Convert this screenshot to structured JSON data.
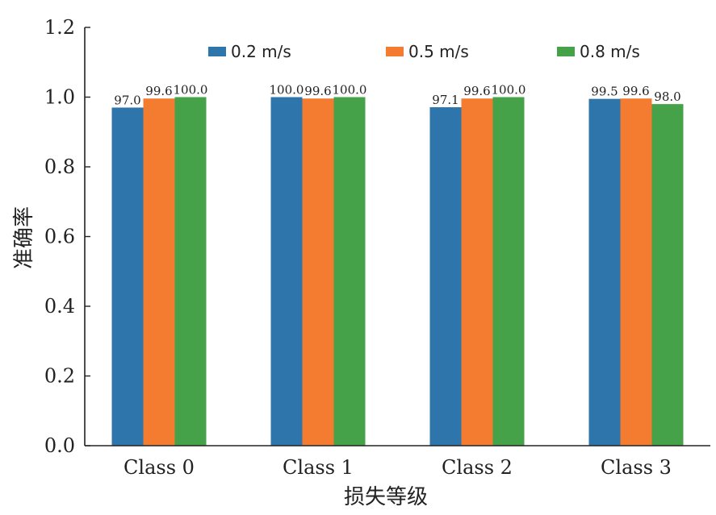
{
  "chart_data": {
    "type": "bar",
    "title": "",
    "xlabel": "损失等级",
    "ylabel": "准确率",
    "categories": [
      "Class 0",
      "Class 1",
      "Class 2",
      "Class 3"
    ],
    "ylim": [
      0.0,
      1.2
    ],
    "yticks": [
      "0.0",
      "0.2",
      "0.4",
      "0.6",
      "0.8",
      "1.0",
      "1.2"
    ],
    "grid": false,
    "legend_position": "top",
    "series": [
      {
        "name": "0.2 m/s",
        "color": "#2e75ab",
        "values": [
          0.97,
          1.0,
          0.971,
          0.995
        ],
        "labels": [
          "97.0",
          "100.0",
          "97.1",
          "99.5"
        ]
      },
      {
        "name": "0.5 m/s",
        "color": "#f47c30",
        "values": [
          0.996,
          0.996,
          0.996,
          0.996
        ],
        "labels": [
          "99.6",
          "99.6",
          "99.6",
          "99.6"
        ]
      },
      {
        "name": "0.8 m/s",
        "color": "#45a248",
        "values": [
          1.0,
          1.0,
          1.0,
          0.98
        ],
        "labels": [
          "100.0",
          "100.0",
          "100.0",
          "98.0"
        ]
      }
    ]
  }
}
